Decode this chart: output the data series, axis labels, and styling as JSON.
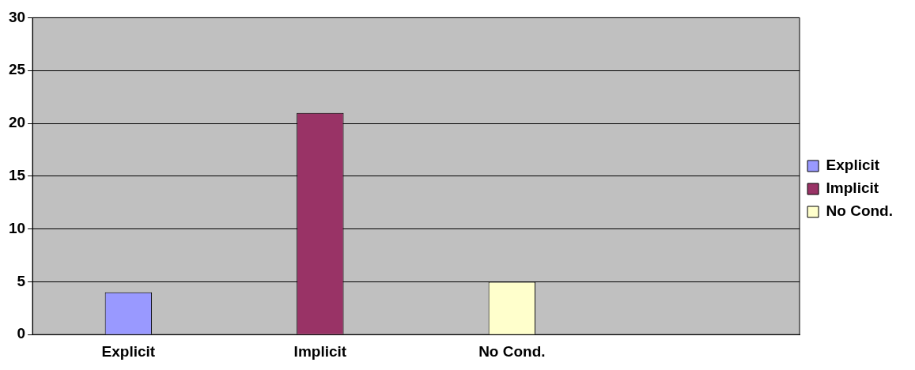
{
  "chart_data": {
    "type": "bar",
    "categories": [
      "Explicit",
      "Implicit",
      "No Cond.",
      null
    ],
    "series": [
      {
        "name": "Explicit",
        "color": "#9999ff",
        "values": [
          4,
          null,
          null,
          null
        ]
      },
      {
        "name": "Implicit",
        "color": "#993366",
        "values": [
          null,
          21,
          null,
          null
        ]
      },
      {
        "name": "No Cond.",
        "color": "#ffffcc",
        "values": [
          null,
          null,
          5,
          null
        ]
      }
    ],
    "ylim": [
      0,
      30
    ],
    "yticks": [
      0,
      5,
      10,
      15,
      20,
      25,
      30
    ],
    "grid": "y",
    "legend": "right"
  }
}
